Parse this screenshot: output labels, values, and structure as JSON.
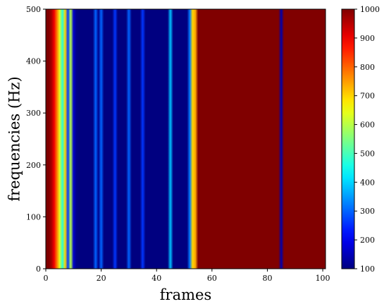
{
  "chart_data": {
    "type": "heatmap",
    "xlabel": "frames",
    "ylabel": "frequencies (Hz)",
    "xlim": [
      0,
      101
    ],
    "ylim": [
      0,
      500
    ],
    "xticks": [
      "0",
      "20",
      "40",
      "60",
      "80",
      "100"
    ],
    "yticks": [
      "0",
      "100",
      "200",
      "300",
      "400",
      "500"
    ],
    "colormap": "jet",
    "colorbar": {
      "range": [
        100,
        1000
      ],
      "ticks": [
        "100",
        "200",
        "300",
        "400",
        "500",
        "600",
        "700",
        "800",
        "900",
        "1000"
      ]
    },
    "grid": false,
    "note_structure": "values vary only along frames; each column is constant across frequencies",
    "frame_values": [
      1000,
      1000,
      970,
      900,
      780,
      640,
      470,
      700,
      260,
      600,
      170,
      110,
      100,
      100,
      100,
      100,
      100,
      100,
      300,
      110,
      300,
      100,
      100,
      100,
      100,
      260,
      100,
      100,
      100,
      100,
      300,
      100,
      100,
      100,
      100,
      260,
      100,
      100,
      100,
      100,
      100,
      100,
      100,
      100,
      100,
      380,
      100,
      100,
      100,
      100,
      100,
      100,
      320,
      700,
      740,
      1000,
      1000,
      1000,
      1000,
      1000,
      1000,
      1000,
      1000,
      1000,
      1000,
      1000,
      1000,
      1000,
      1000,
      1000,
      1000,
      1000,
      1000,
      1000,
      1000,
      1000,
      1000,
      1000,
      1000,
      1000,
      1000,
      1000,
      1000,
      1000,
      1000,
      140,
      1000,
      1000,
      1000,
      1000,
      1000,
      1000,
      1000,
      1000,
      1000,
      1000,
      1000,
      1000,
      1000,
      1000,
      1000
    ]
  }
}
